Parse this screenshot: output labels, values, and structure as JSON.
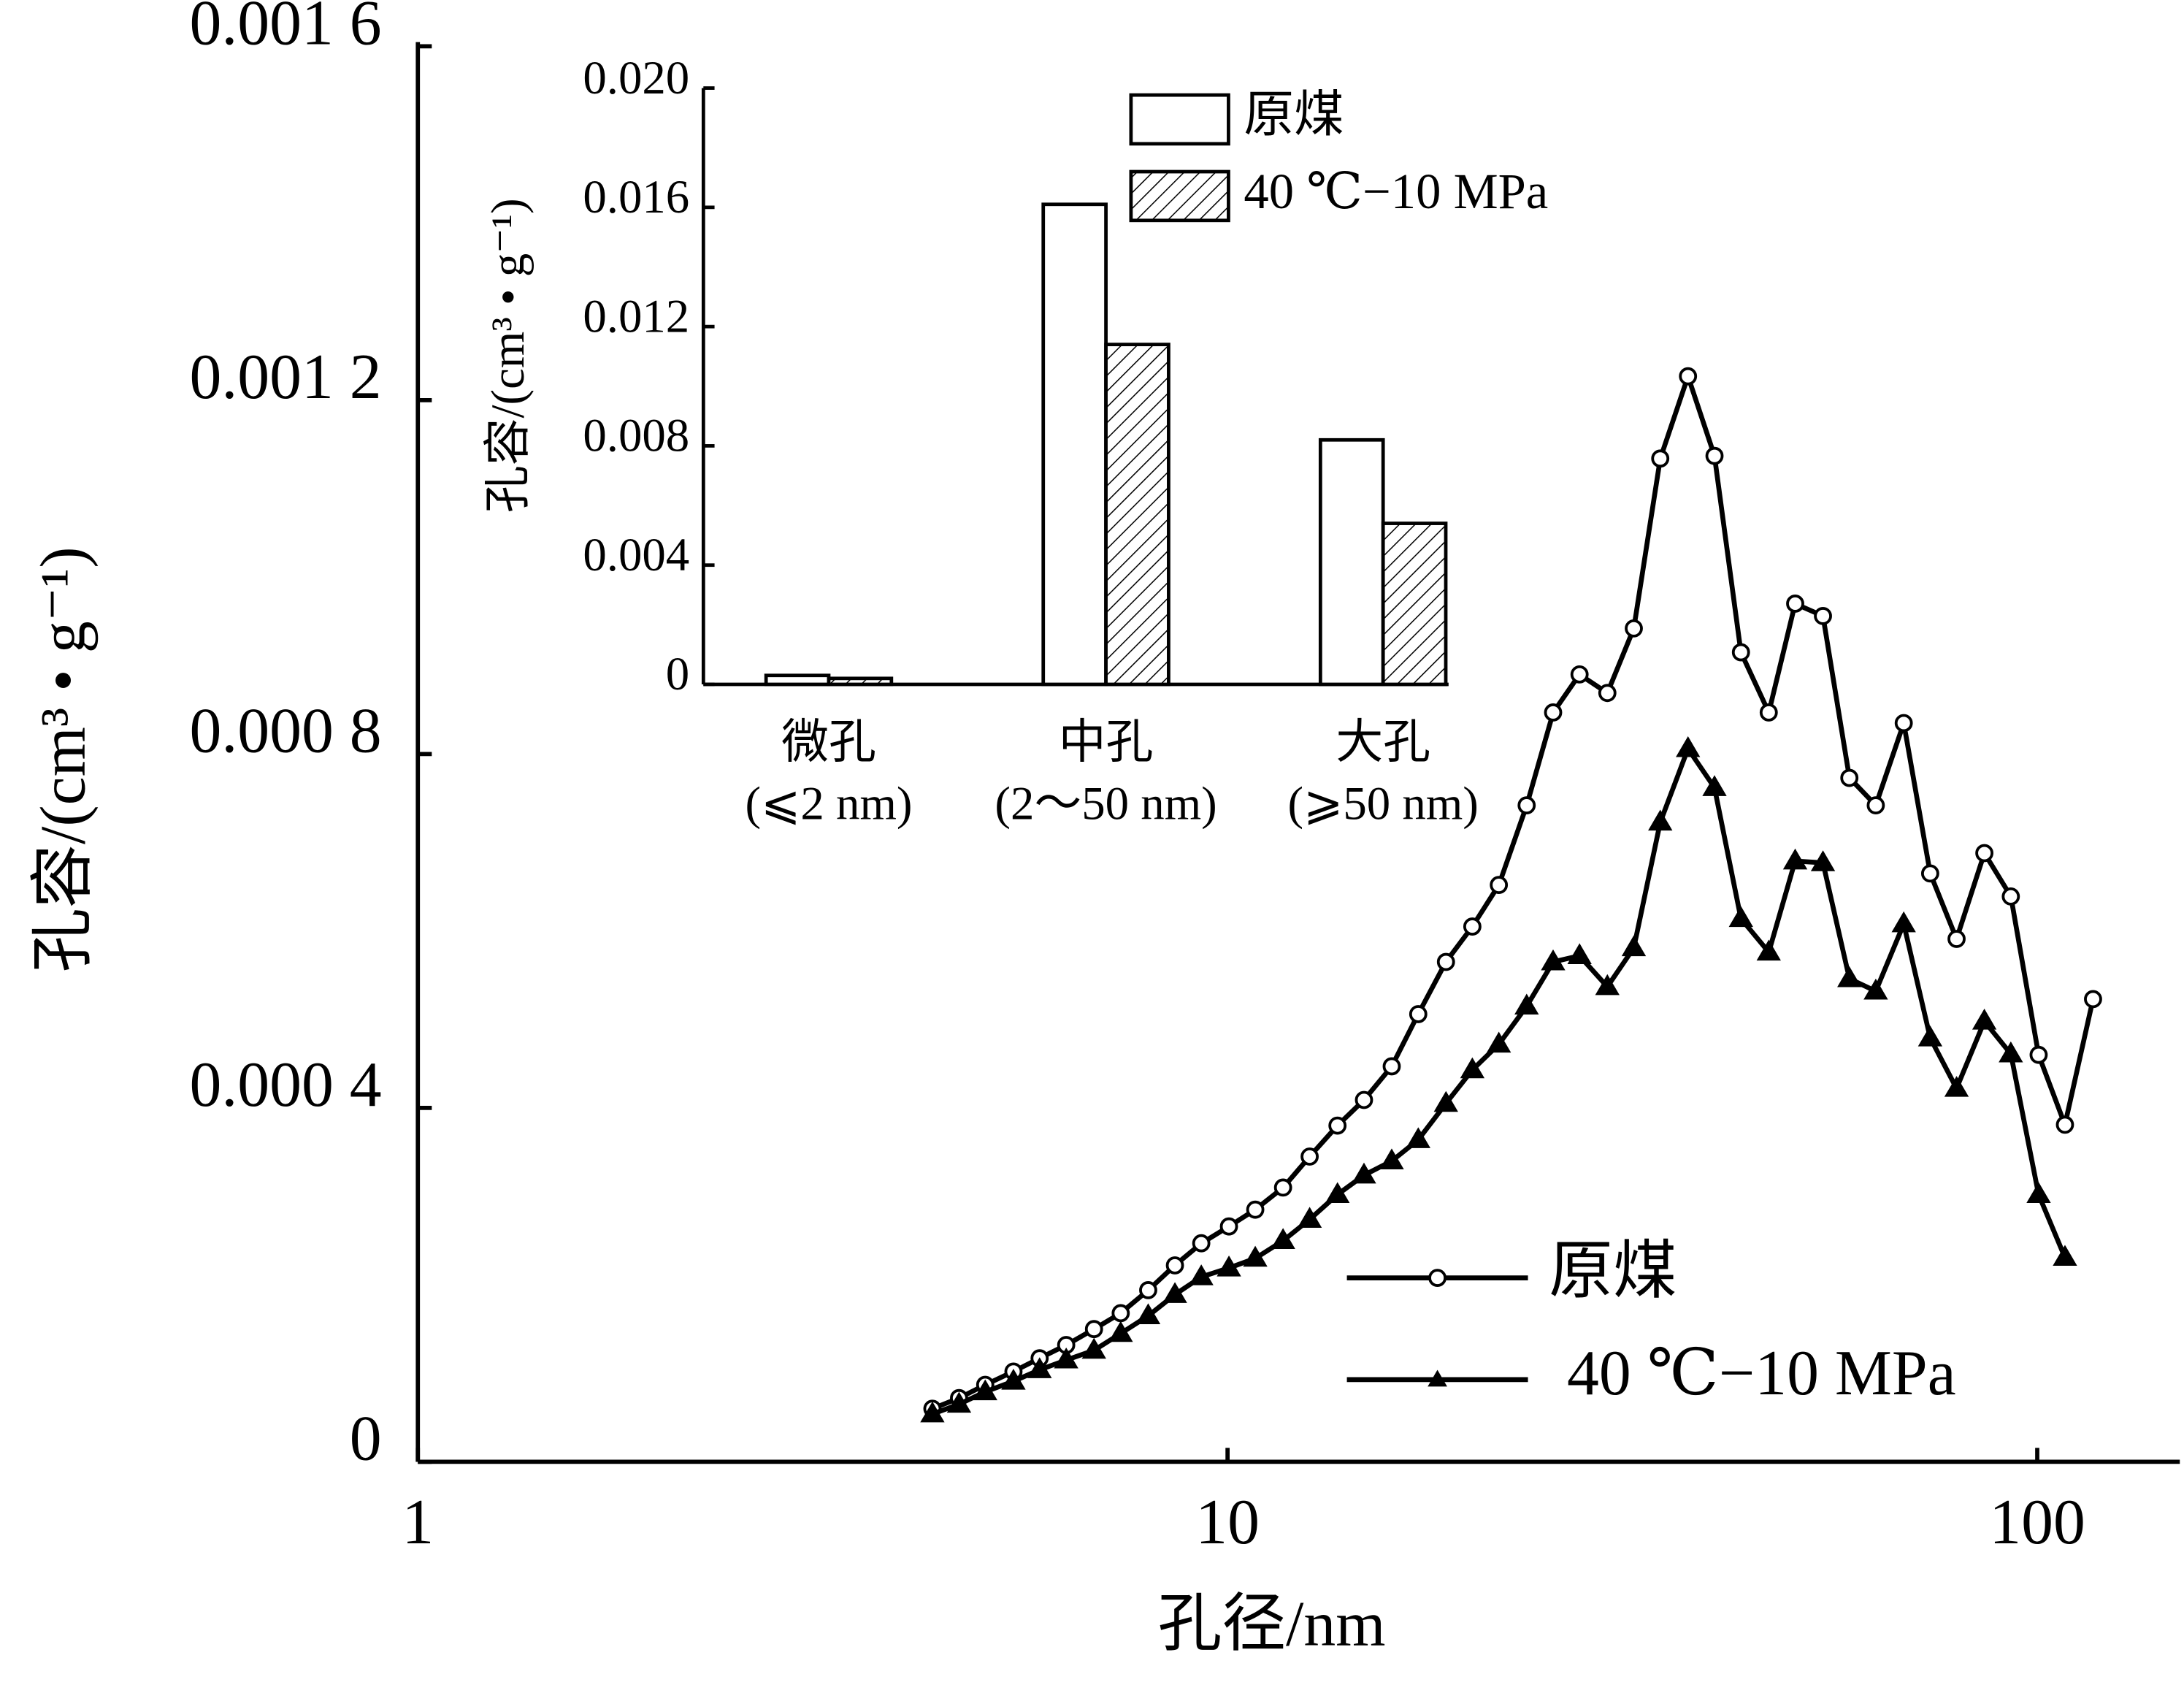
{
  "chart_data": [
    {
      "type": "line",
      "xscale": "log",
      "xlabel": "孔径/nm",
      "ylabel": "孔容/(cm³ • g⁻¹)",
      "xlim": [
        1,
        150
      ],
      "xticks": [
        1,
        10,
        100
      ],
      "ylim": [
        0,
        0.0016
      ],
      "yticks": [
        0,
        {
          "value": 0.0004,
          "label": "0.000 4"
        },
        {
          "value": 0.0008,
          "label": "0.000 8"
        },
        {
          "value": 0.0012,
          "label": "0.001 2"
        },
        {
          "value": 0.0016,
          "label": "0.001 6"
        }
      ],
      "legend": "lower right",
      "x": [
        4.32,
        4.66,
        5.02,
        5.44,
        5.86,
        6.32,
        6.84,
        7.38,
        7.98,
        8.61,
        9.28,
        10.04,
        10.82,
        11.71,
        12.63,
        13.67,
        14.74,
        15.95,
        17.2,
        18.61,
        20.06,
        21.63,
        23.41,
        25.24,
        27.21,
        29.45,
        31.75,
        34.23,
        37.04,
        39.94,
        43.06,
        46.6,
        50.24,
        54.37,
        58.61,
        63.18,
        68.41,
        73.75,
        79.5,
        86.04,
        92.76,
        100.4,
        108.2,
        117.2
      ],
      "series": [
        {
          "name": "原煤",
          "color": "#000000",
          "marker": "circle",
          "values": [
            6e-05,
            7.2e-05,
            8.7e-05,
            0.000102,
            0.000117,
            0.000132,
            0.00015,
            0.000168,
            0.000194,
            0.000222,
            0.000247,
            0.000266,
            0.000285,
            0.00031,
            0.000345,
            0.00038,
            0.000409,
            0.000447,
            0.000506,
            0.000565,
            0.000605,
            0.000652,
            0.000742,
            0.000847,
            0.00089,
            0.000869,
            0.000942,
            0.001134,
            0.001227,
            0.001137,
            0.000915,
            0.000847,
            0.00097,
            0.000956,
            0.000773,
            0.000742,
            0.000835,
            0.000665,
            0.000591,
            0.000688,
            0.000639,
            0.00046,
            0.000381,
            0.000523
          ]
        },
        {
          "name": "40 ℃−10 MPa",
          "color": "#000000",
          "marker": "triangle",
          "values": [
            5.4e-05,
            6.5e-05,
            7.9e-05,
            9.1e-05,
            0.000104,
            0.000115,
            0.000126,
            0.000145,
            0.000165,
            0.000189,
            0.000209,
            0.000219,
            0.00023,
            0.00025,
            0.000274,
            0.000302,
            0.000324,
            0.00034,
            0.000364,
            0.000405,
            0.000443,
            0.000472,
            0.000515,
            0.000565,
            0.000572,
            0.000537,
            0.000581,
            0.000723,
            0.000806,
            0.000762,
            0.000614,
            0.000576,
            0.000679,
            0.000677,
            0.000546,
            0.000532,
            0.000608,
            0.000479,
            0.000422,
            0.000498,
            0.000461,
            0.000302,
            0.000231,
            null
          ]
        }
      ]
    },
    {
      "type": "bar",
      "ylabel": "孔容/(cm³ • g⁻¹)",
      "categories": [
        [
          "微孔",
          "(⩽2 nm)"
        ],
        [
          "中孔",
          "(2～50 nm)"
        ],
        [
          "大孔",
          "(⩾50 nm)"
        ]
      ],
      "ylim": [
        0,
        0.02
      ],
      "yticks": [
        0,
        0.004,
        0.008,
        0.012,
        0.016,
        {
          "value": 0.02,
          "label": "0.020"
        }
      ],
      "legend": "upper center",
      "series": [
        {
          "name": "原煤",
          "color": "#000000",
          "hatch": false,
          "values": [
            0.0003,
            0.0161,
            0.0082
          ]
        },
        {
          "name": "40 ℃−10 MPa",
          "color": "#000000",
          "hatch": true,
          "values": [
            0.0002,
            0.0114,
            0.0054
          ]
        }
      ]
    }
  ]
}
